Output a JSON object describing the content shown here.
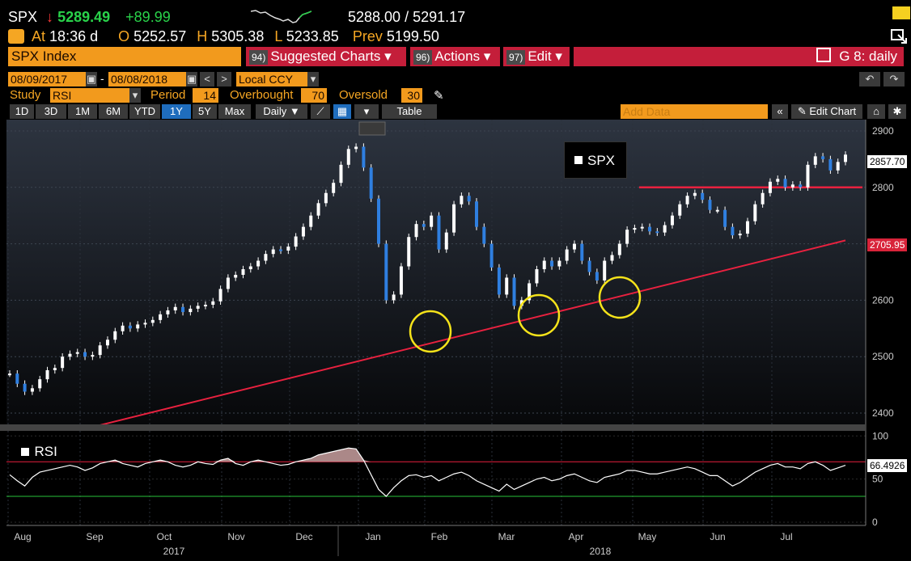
{
  "quote": {
    "symbol": "SPX",
    "arrow": "↓",
    "last": "5289.49",
    "change": "+89.99",
    "bid_ask": "5288.00 / 5291.17",
    "at_label": "At",
    "time": "18:36 d",
    "open_label": "O",
    "open": "5252.57",
    "high_label": "H",
    "high": "5305.38",
    "low_label": "L",
    "low": "5233.85",
    "prev_label": "Prev",
    "prev": "5199.50"
  },
  "toolbar": {
    "security": "SPX Index",
    "suggested_num": "94)",
    "suggested": "Suggested Charts ▾",
    "actions_num": "96)",
    "actions": "Actions ▾",
    "edit_num": "97)",
    "edit": "Edit ▾",
    "graph": "G 8: daily"
  },
  "range": {
    "start": "08/09/2017",
    "dash": "-",
    "end": "08/08/2018",
    "currency": "Local CCY"
  },
  "study": {
    "study_label": "Study",
    "study_value": "RSI",
    "period_label": "Period",
    "period_value": "14",
    "overbought_label": "Overbought",
    "overbought_value": "70",
    "oversold_label": "Oversold",
    "oversold_value": "30"
  },
  "periods": [
    "1D",
    "3D",
    "1M",
    "6M",
    "YTD",
    "1Y",
    "5Y",
    "Max"
  ],
  "selected_period": "1Y",
  "frequency": "Daily ▼",
  "table_label": "Table",
  "add_data_placeholder": "Add Data",
  "edit_chart": "Edit Chart",
  "chart_data": [
    {
      "type": "line",
      "legend": "SPX",
      "x_ticks_months": [
        "Aug",
        "Sep",
        "Oct",
        "Nov",
        "Dec",
        "Jan",
        "Feb",
        "Mar",
        "Apr",
        "May",
        "Jun",
        "Jul"
      ],
      "x_years": [
        "2017",
        "2018"
      ],
      "y_ticks": [
        2400,
        2500,
        2600,
        2700,
        2800,
        2900
      ],
      "ylim": [
        2380,
        2920
      ],
      "last_price_label": "2857.70",
      "ma_label": "2705.95",
      "horizontal_line": 2800,
      "price_series": [
        2470,
        2452,
        2438,
        2444,
        2460,
        2476,
        2480,
        2500,
        2505,
        2508,
        2500,
        2503,
        2520,
        2530,
        2545,
        2555,
        2550,
        2557,
        2560,
        2565,
        2575,
        2582,
        2588,
        2579,
        2585,
        2590,
        2592,
        2598,
        2620,
        2640,
        2645,
        2655,
        2660,
        2670,
        2682,
        2690,
        2688,
        2695,
        2713,
        2730,
        2750,
        2772,
        2790,
        2808,
        2840,
        2868,
        2872,
        2835,
        2780,
        2700,
        2600,
        2610,
        2660,
        2712,
        2735,
        2730,
        2750,
        2690,
        2720,
        2770,
        2785,
        2775,
        2730,
        2700,
        2658,
        2610,
        2640,
        2590,
        2600,
        2630,
        2655,
        2670,
        2660,
        2670,
        2690,
        2700,
        2670,
        2650,
        2635,
        2670,
        2680,
        2700,
        2725,
        2728,
        2730,
        2722,
        2720,
        2733,
        2750,
        2770,
        2785,
        2790,
        2778,
        2760,
        2760,
        2730,
        2715,
        2718,
        2740,
        2770,
        2790,
        2810,
        2815,
        2800,
        2805,
        2800,
        2840,
        2855,
        2850,
        2830,
        2845,
        2858
      ],
      "ma_series_endpoints": [
        [
          0,
          2378
        ],
        [
          111,
          2706
        ]
      ]
    },
    {
      "type": "line",
      "legend": "RSI",
      "y_ticks": [
        0,
        50,
        100
      ],
      "ylim": [
        0,
        100
      ],
      "overbought": 70,
      "oversold": 30,
      "last_label": "66.4926",
      "values": [
        55,
        48,
        42,
        52,
        58,
        60,
        62,
        64,
        66,
        64,
        60,
        63,
        68,
        70,
        72,
        68,
        66,
        64,
        68,
        70,
        72,
        70,
        66,
        64,
        66,
        70,
        68,
        67,
        72,
        74,
        68,
        66,
        70,
        72,
        70,
        68,
        66,
        67,
        70,
        72,
        74,
        78,
        80,
        82,
        84,
        86,
        85,
        72,
        55,
        38,
        30,
        40,
        48,
        54,
        55,
        52,
        54,
        48,
        52,
        56,
        58,
        54,
        48,
        44,
        40,
        36,
        44,
        38,
        42,
        46,
        50,
        52,
        48,
        50,
        54,
        56,
        52,
        48,
        46,
        52,
        54,
        56,
        60,
        60,
        58,
        56,
        56,
        58,
        60,
        62,
        64,
        62,
        58,
        54,
        54,
        48,
        42,
        46,
        52,
        58,
        62,
        66,
        68,
        64,
        64,
        62,
        68,
        70,
        66,
        60,
        63,
        66
      ]
    }
  ]
}
